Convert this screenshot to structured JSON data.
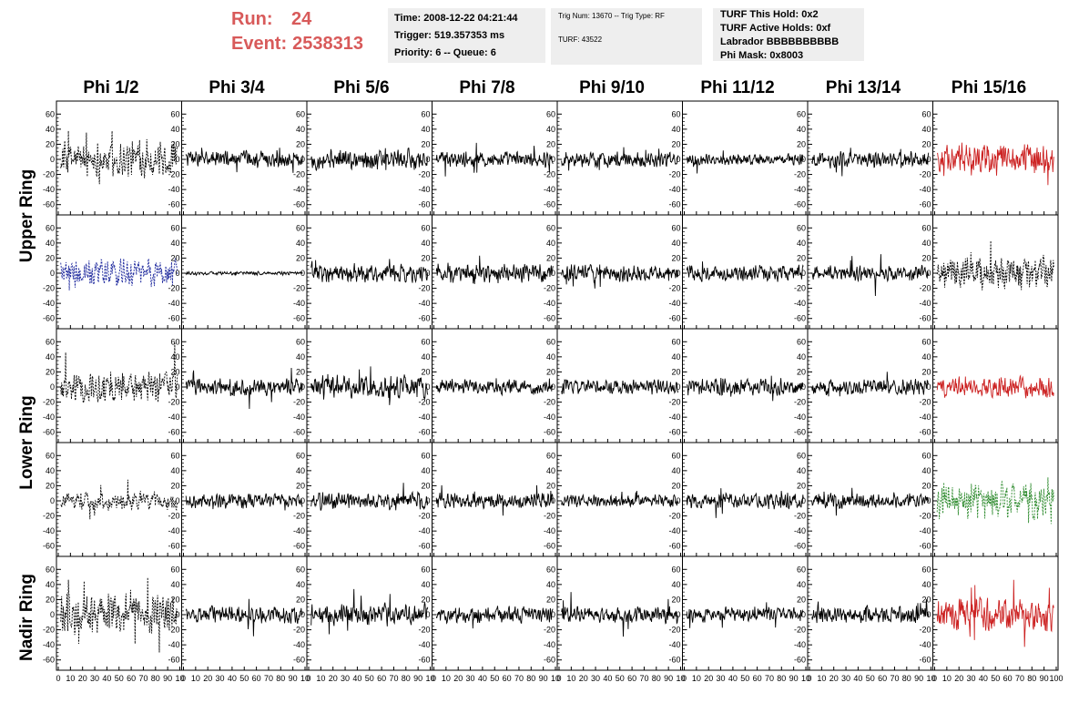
{
  "header": {
    "run_label": "Run:",
    "run_value": "24",
    "event_label": "Event:",
    "event_value": "2538313",
    "time_line": "Time: 2008-12-22 04:21:44",
    "trigger_line": "Trigger: 519.357353 ms",
    "priority_line": "Priority: 6 -- Queue: 6",
    "trig_line": "Trig Num: 13670 -- Trig Type: RF",
    "turf_line": "TURF: 43522",
    "hold_line": "TURF This Hold: 0x2",
    "active_line": "TURF Active Holds: 0xf",
    "labrador_line": "Labrador BBBBBBBBBB",
    "mask_line": "Phi Mask: 0x8003"
  },
  "columns": [
    "Phi 1/2",
    "Phi 3/4",
    "Phi 5/6",
    "Phi 7/8",
    "Phi 9/10",
    "Phi 11/12",
    "Phi 13/14",
    "Phi 15/16"
  ],
  "rings": [
    "Upper Ring",
    "Lower Ring",
    "Nadir Ring"
  ],
  "chart_data": {
    "type": "line",
    "rows": 5,
    "cols": 8,
    "xlim": [
      0,
      100
    ],
    "ylim": [
      -70,
      70
    ],
    "yticks": [
      60,
      40,
      20,
      0,
      -20,
      -40,
      -60
    ],
    "xticks": [
      0,
      10,
      20,
      30,
      40,
      50,
      60,
      70,
      80,
      90,
      100
    ],
    "xticklabels_text": [
      "0 10 20 30 40 50 60 70 80 90 10",
      "0 10 20 30 40 50 60 70 80 90 10",
      "0 10 20 30 40 50 60 70 80 90 10",
      "0 10 20 30 40 50 60 70 80 90 10",
      "0 10 20 30 40 50 60 70 80 90 10",
      "0 10 20 30 40 50 60 70 80 90 10",
      "0 10 20 30 40 50 60 70 80 90 10",
      "0 10 20 30 40 50 60 70 80 90 100"
    ],
    "samples_per_trace": 260,
    "colors": {
      "black": "#000000",
      "blue": "#1f2a9e",
      "red": "#cc2222",
      "green": "#2e8b2e"
    },
    "panels": [
      [
        {
          "color": "black",
          "dashed": true,
          "amp": 30
        },
        {
          "color": "black",
          "dashed": false,
          "amp": 14
        },
        {
          "color": "black",
          "dashed": false,
          "amp": 17
        },
        {
          "color": "black",
          "dashed": false,
          "amp": 13
        },
        {
          "color": "black",
          "dashed": false,
          "amp": 13
        },
        {
          "color": "black",
          "dashed": false,
          "amp": 9
        },
        {
          "color": "black",
          "dashed": false,
          "amp": 14
        },
        {
          "color": "red",
          "dashed": false,
          "amp": 26
        }
      ],
      [
        {
          "color": "blue",
          "dashed": true,
          "amp": 25
        },
        {
          "color": "black",
          "dashed": false,
          "amp": 3
        },
        {
          "color": "black",
          "dashed": false,
          "amp": 15
        },
        {
          "color": "black",
          "dashed": false,
          "amp": 15
        },
        {
          "color": "black",
          "dashed": false,
          "amp": 14
        },
        {
          "color": "black",
          "dashed": false,
          "amp": 13
        },
        {
          "color": "black",
          "dashed": false,
          "amp": 13
        },
        {
          "color": "black",
          "dashed": true,
          "amp": 28
        }
      ],
      [
        {
          "color": "black",
          "dashed": true,
          "amp": 27
        },
        {
          "color": "black",
          "dashed": false,
          "amp": 14
        },
        {
          "color": "black",
          "dashed": false,
          "amp": 20
        },
        {
          "color": "black",
          "dashed": false,
          "amp": 13
        },
        {
          "color": "black",
          "dashed": false,
          "amp": 12
        },
        {
          "color": "black",
          "dashed": false,
          "amp": 14
        },
        {
          "color": "black",
          "dashed": false,
          "amp": 13
        },
        {
          "color": "red",
          "dashed": false,
          "amp": 17
        }
      ],
      [
        {
          "color": "black",
          "dashed": true,
          "amp": 15
        },
        {
          "color": "black",
          "dashed": false,
          "amp": 12
        },
        {
          "color": "black",
          "dashed": false,
          "amp": 15
        },
        {
          "color": "black",
          "dashed": false,
          "amp": 13
        },
        {
          "color": "black",
          "dashed": false,
          "amp": 10
        },
        {
          "color": "black",
          "dashed": false,
          "amp": 13
        },
        {
          "color": "black",
          "dashed": false,
          "amp": 12
        },
        {
          "color": "green",
          "dashed": true,
          "amp": 30
        }
      ],
      [
        {
          "color": "black",
          "dashed": true,
          "amp": 33
        },
        {
          "color": "black",
          "dashed": false,
          "amp": 14
        },
        {
          "color": "black",
          "dashed": false,
          "amp": 18
        },
        {
          "color": "black",
          "dashed": false,
          "amp": 14
        },
        {
          "color": "black",
          "dashed": false,
          "amp": 14
        },
        {
          "color": "black",
          "dashed": false,
          "amp": 12
        },
        {
          "color": "black",
          "dashed": false,
          "amp": 14
        },
        {
          "color": "red",
          "dashed": false,
          "amp": 28
        }
      ]
    ]
  }
}
